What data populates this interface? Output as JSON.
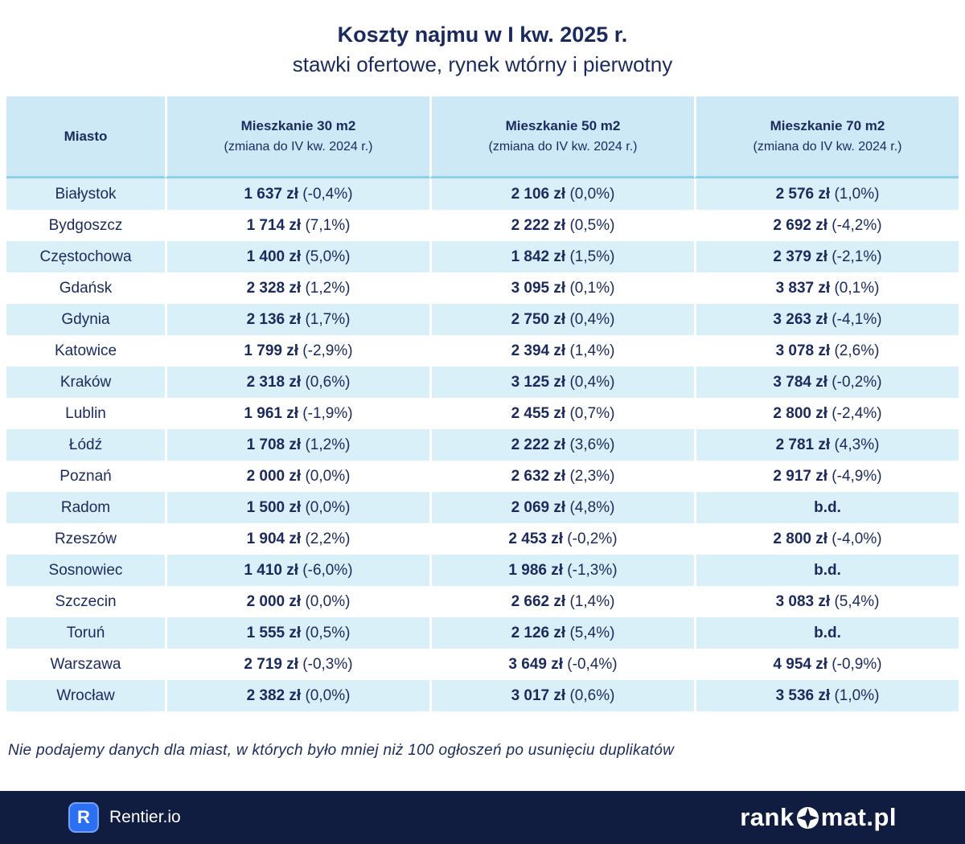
{
  "chart_data": {
    "type": "table",
    "title": "Koszty najmu w I kw. 2025 r.",
    "subtitle": "stawki ofertowe, rynek wtórny i pierwotny",
    "unit": "zł",
    "missing_value_label": "b.d.",
    "city_header": "Miasto",
    "cities": [
      "Białystok",
      "Bydgoszcz",
      "Częstochowa",
      "Gdańsk",
      "Gdynia",
      "Katowice",
      "Kraków",
      "Lublin",
      "Łódź",
      "Poznań",
      "Radom",
      "Rzeszów",
      "Sosnowiec",
      "Szczecin",
      "Toruń",
      "Warszawa",
      "Wrocław"
    ],
    "series": [
      {
        "name": "Mieszkanie 30 m2",
        "change_label": "(zmiana do IV kw. 2024 r.)",
        "prices_pln": [
          1637,
          1714,
          1400,
          2328,
          2136,
          1799,
          2318,
          1961,
          1708,
          2000,
          1500,
          1904,
          1410,
          2000,
          1555,
          2719,
          2382
        ],
        "change_pct": [
          -0.4,
          7.1,
          5.0,
          1.2,
          1.7,
          -2.9,
          0.6,
          -1.9,
          1.2,
          0.0,
          0.0,
          2.2,
          -6.0,
          0.0,
          0.5,
          -0.3,
          0.0
        ]
      },
      {
        "name": "Mieszkanie 50 m2",
        "change_label": "(zmiana do IV kw. 2024 r.)",
        "prices_pln": [
          2106,
          2222,
          1842,
          3095,
          2750,
          2394,
          3125,
          2455,
          2222,
          2632,
          2069,
          2453,
          1986,
          2662,
          2126,
          3649,
          3017
        ],
        "change_pct": [
          0.0,
          0.5,
          1.5,
          0.1,
          0.4,
          1.4,
          0.4,
          0.7,
          3.6,
          2.3,
          4.8,
          -0.2,
          -1.3,
          1.4,
          5.4,
          -0.4,
          0.6
        ]
      },
      {
        "name": "Mieszkanie 70 m2",
        "change_label": "(zmiana do IV kw. 2024 r.)",
        "prices_pln": [
          2576,
          2692,
          2379,
          3837,
          3263,
          3078,
          3784,
          2800,
          2781,
          2917,
          null,
          2800,
          null,
          3083,
          null,
          4954,
          3536
        ],
        "change_pct": [
          1.0,
          -4.2,
          -2.1,
          0.1,
          -4.1,
          2.6,
          -0.2,
          -2.4,
          4.3,
          -4.9,
          null,
          -4.0,
          null,
          5.4,
          null,
          -0.9,
          1.0
        ]
      }
    ]
  },
  "footnote": "Nie podajemy danych dla miast, w których było mniej niż 100 ogłoszeń po usunięciu duplikatów",
  "footer": {
    "rentier_letter": "R",
    "rentier_label": "Rentier.io",
    "rankomat_prefix": "rank",
    "rankomat_suffix": "mat.pl"
  },
  "colors": {
    "navy": "#1b2a5e",
    "row_blue": "#d9f0f9",
    "header_blue": "#cde9f5",
    "header_rule": "#8fd1ec",
    "footer_bg": "#101d40",
    "rentier_blue": "#2b6ff2"
  }
}
